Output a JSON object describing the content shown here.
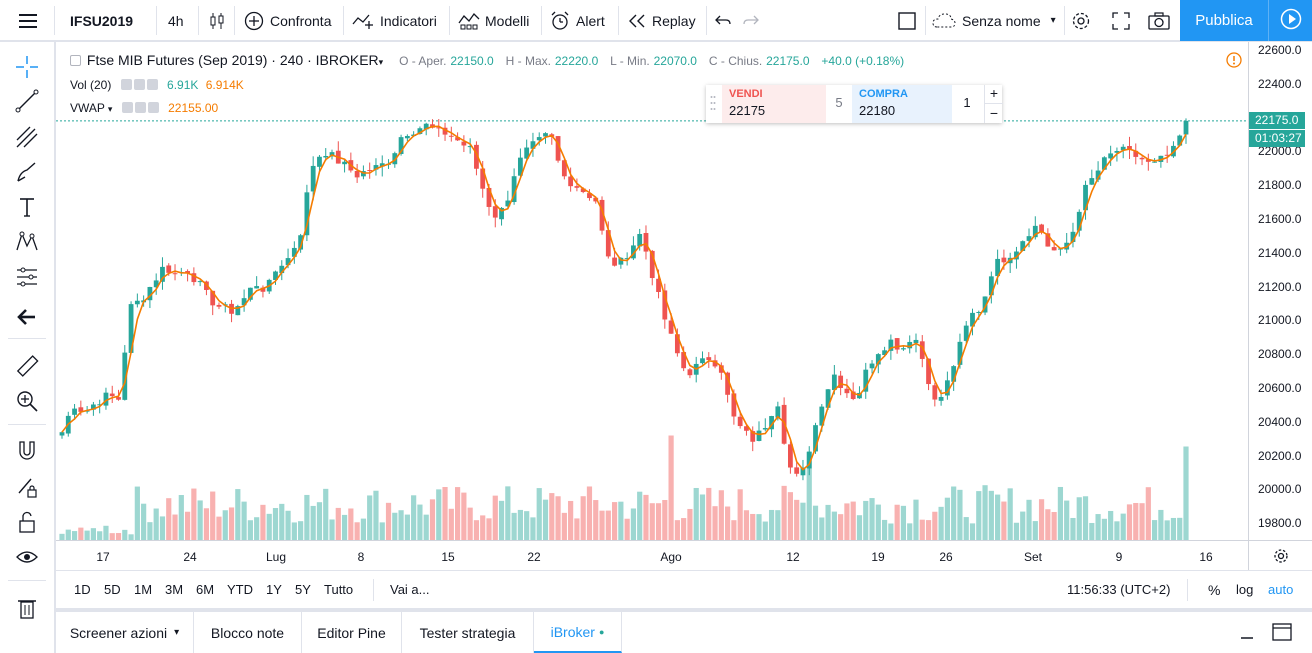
{
  "toolbar": {
    "symbol": "IFSU2019",
    "interval": "4h",
    "compare": "Confronta",
    "indicators": "Indicatori",
    "templates": "Modelli",
    "alert": "Alert",
    "replay": "Replay",
    "layout_name": "Senza nome",
    "publish": "Pubblica"
  },
  "legend": {
    "title": "Ftse MIB Futures (Sep 2019) · 240 · IBROKER",
    "open_label": "O - Aper.",
    "open": "22150.0",
    "high_label": "H - Max.",
    "high": "22220.0",
    "low_label": "L - Min.",
    "low": "22070.0",
    "close_label": "C - Chius.",
    "close": "22175.0",
    "change": "+40.0 (+0.18%)",
    "vol_label": "Vol (20)",
    "vol_value1": "6.91K",
    "vol_value2": "6.914K",
    "vwap_label": "VWAP",
    "vwap_value": "22155.00"
  },
  "trade_panel": {
    "sell_label": "VENDI",
    "sell_price": "22175",
    "spread": "5",
    "buy_label": "COMPRA",
    "buy_price": "22180",
    "quantity": "1",
    "plus": "+",
    "minus": "−"
  },
  "price_axis": {
    "labels": [
      "22600.0",
      "22400.0",
      "22200.0",
      "22000.0",
      "21800.0",
      "21600.0",
      "21400.0",
      "21200.0",
      "21000.0",
      "20800.0",
      "20600.0",
      "20400.0",
      "20200.0",
      "20000.0",
      "19800.0"
    ],
    "last_price": "22175.0",
    "countdown": "01:03:27"
  },
  "time_axis": {
    "labels": [
      "17",
      "24",
      "Lug",
      "8",
      "15",
      "22",
      "Ago",
      "12",
      "19",
      "26",
      "Set",
      "9",
      "16"
    ]
  },
  "bottom": {
    "ranges": [
      "1D",
      "5D",
      "1M",
      "3M",
      "6M",
      "YTD",
      "1Y",
      "5Y",
      "Tutto"
    ],
    "goto": "Vai a...",
    "time": "11:56:33 (UTC+2)",
    "percent": "%",
    "log": "log",
    "auto": "auto"
  },
  "tabs": [
    "Screener azioni",
    "Blocco note",
    "Editor Pine",
    "Tester strategia",
    "iBroker"
  ],
  "colors": {
    "up": "#26a69a",
    "down": "#ef5350",
    "vwap": "#f57c00",
    "accent": "#2196f3"
  },
  "chart_data": {
    "type": "candlestick",
    "title": "Ftse MIB Futures (Sep 2019) · 240 · IBROKER",
    "ylim": [
      19650,
      22650
    ],
    "x_labels": [
      "17",
      "24",
      "Lug",
      "8",
      "15",
      "22",
      "Ago",
      "12",
      "19",
      "26",
      "Set",
      "9",
      "16"
    ],
    "close_path": [
      20300,
      20470,
      20420,
      20480,
      20520,
      20500,
      21050,
      21100,
      21200,
      21300,
      21250,
      21280,
      21200,
      21100,
      21050,
      21030,
      21100,
      21200,
      21150,
      21300,
      21350,
      21500,
      21900,
      22000,
      21950,
      21900,
      21850,
      21880,
      21900,
      21950,
      22100,
      22120,
      22150,
      22110,
      22100,
      22050,
      22000,
      21780,
      21600,
      21650,
      21900,
      22000,
      22050,
      22100,
      21850,
      21800,
      21750,
      21700,
      21350,
      21300,
      21400,
      21500,
      21250,
      21000,
      20800,
      20650,
      20700,
      20750,
      20700,
      20400,
      20300,
      20250,
      20350,
      20500,
      20100,
      20000,
      20250,
      20500,
      20650,
      20550,
      20500,
      20700,
      20800,
      20850,
      20800,
      20900,
      20700,
      20450,
      20600,
      20800,
      21000,
      21050,
      21300,
      21350,
      21400,
      21500,
      21550,
      21400,
      21380,
      21500,
      21750,
      21850,
      21950,
      22000,
      21980,
      21950,
      21900,
      21950,
      22000,
      22175
    ],
    "volume_note": "Volume histogram (Vol 20) shown at bottom; VWAP last 22155.00"
  }
}
